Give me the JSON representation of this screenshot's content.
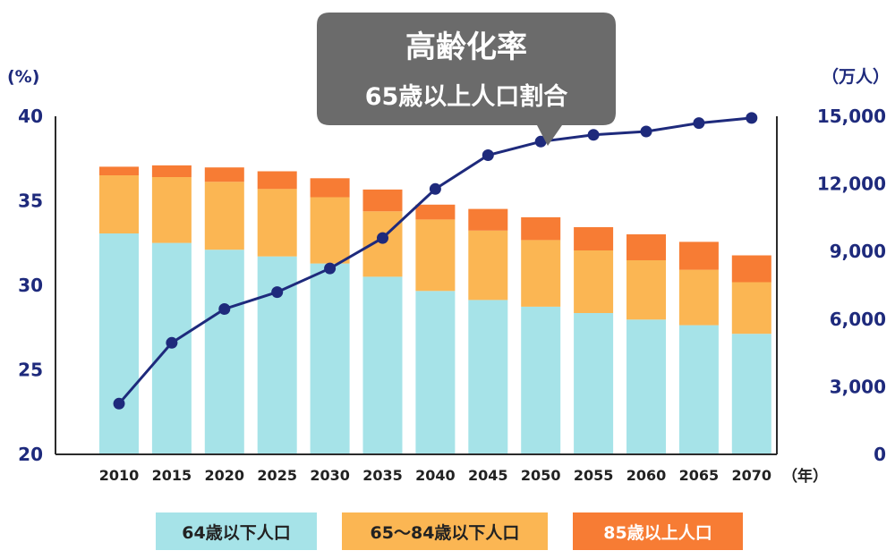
{
  "chart_data": {
    "type": "bar",
    "title": "高齢化率",
    "subtitle": "65歳以上人口割合",
    "left_axis_unit": "(%)",
    "right_axis_unit": "（万人）",
    "x_unit": "（年）",
    "categories": [
      "2010",
      "2015",
      "2020",
      "2025",
      "2030",
      "2035",
      "2040",
      "2045",
      "2050",
      "2055",
      "2060",
      "2065",
      "2070"
    ],
    "left_ylim": [
      20,
      40
    ],
    "left_ticks": [
      "40",
      "35",
      "30",
      "25",
      "20"
    ],
    "right_ylim": [
      0,
      15000
    ],
    "right_ticks": [
      "15,000",
      "12,000",
      "9,000",
      "6,000",
      "3,000",
      "0"
    ],
    "grid": false,
    "legend_position": "bottom",
    "series": [
      {
        "name": "64歳以下人口",
        "axis": "right",
        "stack": "population",
        "color": "#a6e3e8",
        "values": [
          9800,
          9380,
          9080,
          8780,
          8470,
          7880,
          7250,
          6850,
          6550,
          6270,
          5980,
          5730,
          5350
        ]
      },
      {
        "name": "65～84歳以下人口",
        "axis": "right",
        "stack": "population",
        "color": "#fbb653",
        "values": [
          2580,
          2920,
          3010,
          3000,
          2940,
          2900,
          3170,
          3080,
          2960,
          2780,
          2630,
          2460,
          2290
        ]
      },
      {
        "name": "85歳以上人口",
        "axis": "right",
        "stack": "population",
        "color": "#f77c34",
        "values": [
          380,
          520,
          640,
          780,
          840,
          970,
          660,
          960,
          1010,
          1030,
          1150,
          1240,
          1190
        ]
      },
      {
        "name": "高齢化率",
        "type": "line",
        "axis": "left",
        "color": "#1e2a7c",
        "values": [
          23.0,
          26.6,
          28.6,
          29.6,
          31.0,
          32.8,
          35.7,
          37.7,
          38.5,
          38.9,
          39.1,
          39.6,
          39.9
        ]
      }
    ]
  },
  "colors": {
    "axis_text": "#1e2a7c",
    "callout_bg": "#6b6b6b",
    "callout_text": "#ffffff",
    "year_text": "#222222",
    "legend_text": "#222222",
    "legend_text_dark_bg": "#ffffff"
  }
}
